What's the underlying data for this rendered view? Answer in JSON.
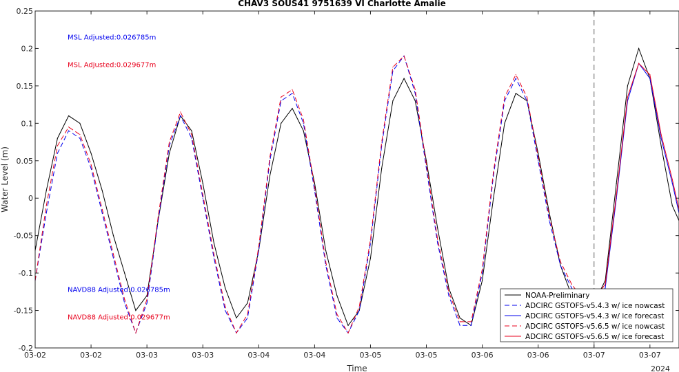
{
  "chart_data": {
    "type": "line",
    "title": "CHAV3 SOUS41 9751639 VI Charlotte Amalie",
    "xlabel": "Time",
    "ylabel": "Water Level (m)",
    "ylim": [
      -0.2,
      0.25
    ],
    "xlim": [
      0,
      5.76
    ],
    "y_ticks": [
      -0.2,
      -0.15,
      -0.1,
      -0.05,
      0,
      0.05,
      0.1,
      0.15,
      0.2,
      0.25
    ],
    "y_tick_labels": [
      "-0.2",
      "-0.15",
      "-0.1",
      "-0.05",
      "0",
      "0.05",
      "0.1",
      "0.15",
      "0.2",
      "0.25"
    ],
    "x_ticks": [
      0,
      0.5,
      1,
      1.5,
      2,
      2.5,
      3,
      3.5,
      4,
      4.5,
      5,
      5.5
    ],
    "x_tick_labels": [
      "03-02",
      "03-02",
      "03-03",
      "03-03",
      "03-04",
      "03-04",
      "03-05",
      "03-05",
      "03-06",
      "03-06",
      "03-07",
      "03-07"
    ],
    "x_year_label": "2024",
    "nowcast_forecast_divider_x": 5,
    "grid": false,
    "legend_position": "bottom-right",
    "annotations": [
      {
        "text": "MSL Adjusted:0.026785m",
        "color": "#0000ee",
        "x": 0.29,
        "y": 0.212
      },
      {
        "text": "MSL Adjusted:0.029677m",
        "color": "#e8001c",
        "x": 0.29,
        "y": 0.175
      },
      {
        "text": "NAVD88 Adjusted:0.026785m",
        "color": "#0000ee",
        "x": 0.29,
        "y": -0.125
      },
      {
        "text": "NAVD88 Adjusted:0.029677m",
        "color": "#e8001c",
        "x": 0.29,
        "y": -0.162
      }
    ],
    "series": [
      {
        "name": "NOAA-Preliminary",
        "color": "#000000",
        "style": "solid",
        "x": [
          0,
          0.1,
          0.2,
          0.3,
          0.4,
          0.5,
          0.6,
          0.7,
          0.8,
          0.9,
          1.0,
          1.1,
          1.2,
          1.3,
          1.4,
          1.5,
          1.6,
          1.7,
          1.8,
          1.9,
          2.0,
          2.1,
          2.2,
          2.3,
          2.4,
          2.5,
          2.6,
          2.7,
          2.8,
          2.9,
          3.0,
          3.1,
          3.2,
          3.3,
          3.4,
          3.5,
          3.6,
          3.7,
          3.8,
          3.9,
          4.0,
          4.1,
          4.2,
          4.3,
          4.4,
          4.5,
          4.6,
          4.7,
          4.8,
          4.9,
          5.0,
          5.1,
          5.2,
          5.3,
          5.4,
          5.5,
          5.6,
          5.7,
          5.76
        ],
        "y": [
          -0.07,
          0.01,
          0.08,
          0.11,
          0.1,
          0.06,
          0.01,
          -0.05,
          -0.1,
          -0.15,
          -0.13,
          -0.03,
          0.06,
          0.11,
          0.09,
          0.02,
          -0.06,
          -0.12,
          -0.16,
          -0.14,
          -0.07,
          0.03,
          0.1,
          0.12,
          0.09,
          0.02,
          -0.07,
          -0.13,
          -0.17,
          -0.15,
          -0.08,
          0.04,
          0.13,
          0.16,
          0.13,
          0.05,
          -0.04,
          -0.12,
          -0.16,
          -0.17,
          -0.11,
          0.0,
          0.1,
          0.14,
          0.13,
          0.06,
          -0.02,
          -0.09,
          -0.13,
          -0.14,
          -0.14,
          -0.11,
          0.02,
          0.15,
          0.2,
          0.16,
          0.07,
          -0.01,
          -0.03
        ]
      },
      {
        "name": "ADCIRC GSTOFS-v5.4.3 w/ ice nowcast",
        "color": "#0000ee",
        "style": "dashed",
        "x": [
          0,
          0.1,
          0.2,
          0.3,
          0.4,
          0.5,
          0.6,
          0.7,
          0.8,
          0.9,
          1.0,
          1.1,
          1.2,
          1.3,
          1.4,
          1.5,
          1.6,
          1.7,
          1.8,
          1.9,
          2.0,
          2.1,
          2.2,
          2.3,
          2.4,
          2.5,
          2.6,
          2.7,
          2.8,
          2.9,
          3.0,
          3.1,
          3.2,
          3.3,
          3.4,
          3.5,
          3.6,
          3.7,
          3.8,
          3.9,
          4.0,
          4.1,
          4.2,
          4.3,
          4.4,
          4.5,
          4.6,
          4.7,
          4.8,
          4.9,
          5.0
        ],
        "y": [
          -0.11,
          -0.02,
          0.06,
          0.09,
          0.08,
          0.04,
          -0.02,
          -0.08,
          -0.14,
          -0.18,
          -0.14,
          -0.03,
          0.07,
          0.11,
          0.08,
          0.0,
          -0.08,
          -0.15,
          -0.18,
          -0.16,
          -0.07,
          0.05,
          0.13,
          0.14,
          0.1,
          0.01,
          -0.09,
          -0.16,
          -0.18,
          -0.15,
          -0.06,
          0.07,
          0.17,
          0.19,
          0.14,
          0.04,
          -0.06,
          -0.13,
          -0.17,
          -0.17,
          -0.1,
          0.03,
          0.13,
          0.16,
          0.13,
          0.05,
          -0.03,
          -0.09,
          -0.12,
          -0.14,
          -0.14
        ]
      },
      {
        "name": "ADCIRC GSTOFS-v5.4.3 w/ ice forecast",
        "color": "#0000ee",
        "style": "solid",
        "x": [
          5.0,
          5.1,
          5.2,
          5.3,
          5.4,
          5.5,
          5.6,
          5.7,
          5.76
        ],
        "y": [
          -0.14,
          -0.12,
          0.0,
          0.13,
          0.18,
          0.16,
          0.08,
          0.02,
          -0.02
        ]
      },
      {
        "name": "ADCIRC GSTOFS-v5.6.5 w/ ice nowcast",
        "color": "#e8001c",
        "style": "dashed",
        "x": [
          0,
          0.1,
          0.2,
          0.3,
          0.4,
          0.5,
          0.6,
          0.7,
          0.8,
          0.9,
          1.0,
          1.1,
          1.2,
          1.3,
          1.4,
          1.5,
          1.6,
          1.7,
          1.8,
          1.9,
          2.0,
          2.1,
          2.2,
          2.3,
          2.4,
          2.5,
          2.6,
          2.7,
          2.8,
          2.9,
          3.0,
          3.1,
          3.2,
          3.3,
          3.4,
          3.5,
          3.6,
          3.7,
          3.8,
          3.9,
          4.0,
          4.1,
          4.2,
          4.3,
          4.4,
          4.5,
          4.6,
          4.7,
          4.8,
          4.9,
          5.0
        ],
        "y": [
          -0.11,
          -0.01,
          0.07,
          0.095,
          0.085,
          0.045,
          -0.015,
          -0.075,
          -0.135,
          -0.18,
          -0.135,
          -0.025,
          0.075,
          0.115,
          0.085,
          0.005,
          -0.075,
          -0.145,
          -0.18,
          -0.155,
          -0.065,
          0.055,
          0.135,
          0.145,
          0.105,
          0.015,
          -0.085,
          -0.155,
          -0.18,
          -0.145,
          -0.055,
          0.075,
          0.175,
          0.19,
          0.145,
          0.045,
          -0.055,
          -0.125,
          -0.165,
          -0.165,
          -0.095,
          0.035,
          0.135,
          0.165,
          0.135,
          0.055,
          -0.025,
          -0.085,
          -0.115,
          -0.135,
          -0.135
        ]
      },
      {
        "name": "ADCIRC GSTOFS-v5.6.5 w/ ice forecast",
        "color": "#e8001c",
        "style": "solid",
        "x": [
          5.0,
          5.1,
          5.2,
          5.3,
          5.4,
          5.5,
          5.6,
          5.7,
          5.76
        ],
        "y": [
          -0.135,
          -0.115,
          0.005,
          0.135,
          0.18,
          0.165,
          0.085,
          0.025,
          -0.015
        ]
      }
    ]
  }
}
